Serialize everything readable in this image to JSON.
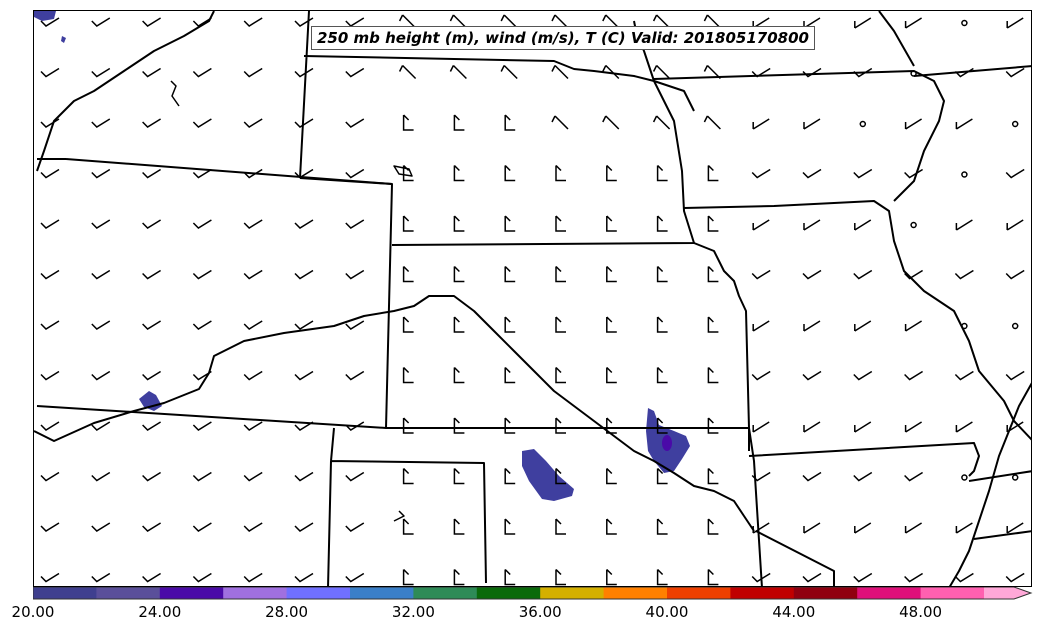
{
  "title": "250 mb height (m), wind (m/s), T (C) Valid: 201805170800",
  "colorbar": {
    "colors": [
      "#3f3f8f",
      "#5a4f9a",
      "#4a0aa8",
      "#a070e0",
      "#7070ff",
      "#3a7fc8",
      "#2e8b57",
      "#0a6a0a",
      "#d4b000",
      "#ff8000",
      "#ee4000",
      "#c00000",
      "#900010",
      "#e0107a",
      "#ff60b0",
      "#ffa8d8"
    ],
    "tick_labels": [
      "20.00",
      "24.00",
      "28.00",
      "32.00",
      "36.00",
      "40.00",
      "44.00",
      "48.00"
    ]
  },
  "shading_color": "#3f3f9f",
  "shading_core_color": "#4a0aa8"
}
